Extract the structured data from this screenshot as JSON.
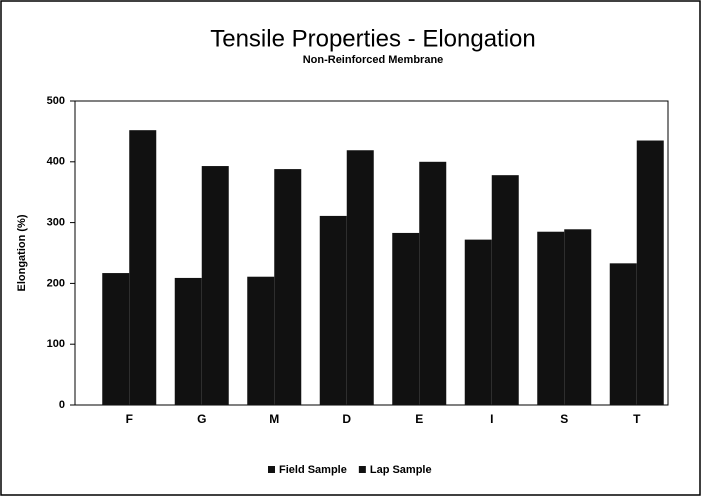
{
  "chart_data": {
    "type": "bar",
    "title": "Tensile Properties - Elongation",
    "subtitle": "Non-Reinforced Membrane",
    "y_label": "Elongation (%)",
    "categories": [
      "F",
      "G",
      "M",
      "D",
      "E",
      "I",
      "S",
      "T"
    ],
    "series": [
      {
        "name": "Field Sample",
        "color": "#111111",
        "values": [
          217,
          209,
          211,
          311,
          283,
          272,
          285,
          233
        ]
      },
      {
        "name": "Lap Sample",
        "color": "#111111",
        "values": [
          452,
          393,
          388,
          419,
          400,
          378,
          289,
          435
        ]
      }
    ],
    "ylim": [
      0,
      500
    ],
    "yticks": [
      0,
      100,
      200,
      300,
      400,
      500
    ],
    "grid": false,
    "legend": "bottom"
  }
}
